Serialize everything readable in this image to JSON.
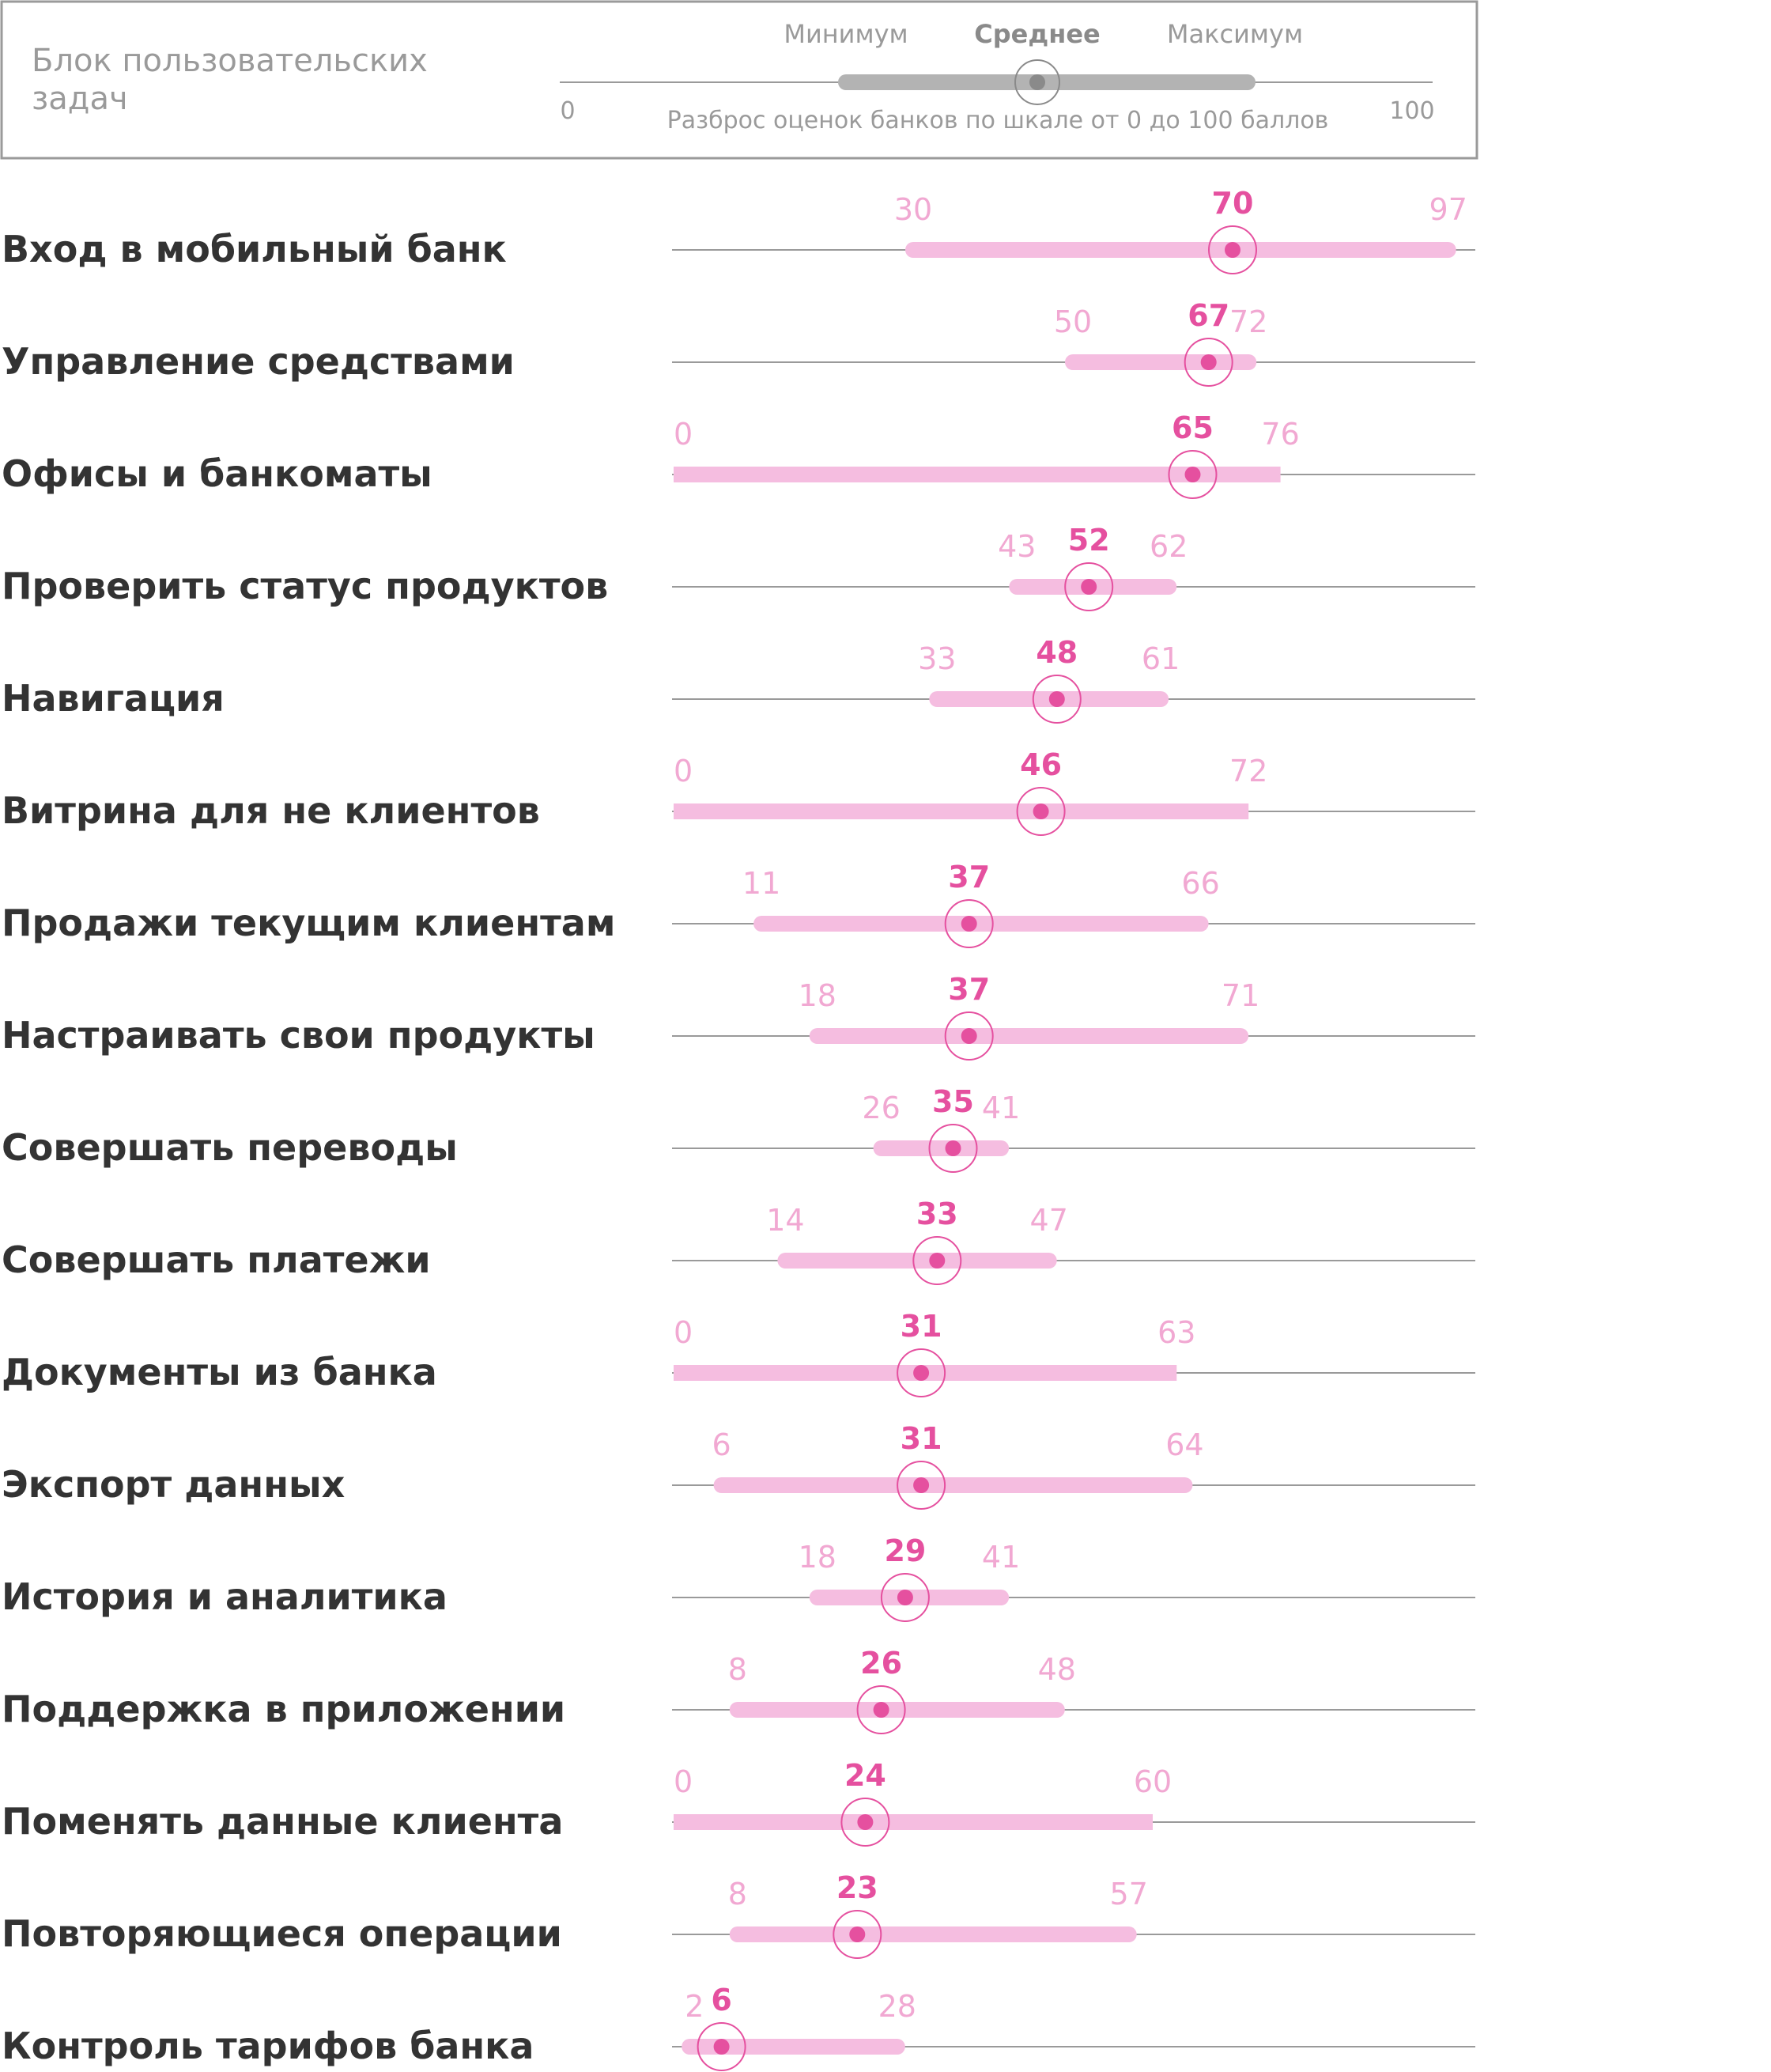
{
  "legend": {
    "title_line1": "Блок пользовательских",
    "title_line2": "задач",
    "min_label": "Минимум",
    "avg_label": "Среднее",
    "max_label": "Максимум",
    "scale_start": "0",
    "scale_end": "100",
    "caption": "Разброс оценок банков по шкале от 0 до 100 баллов"
  },
  "colors": {
    "range_bar": "#f5bde0",
    "avg_dot": "#e5509f",
    "avg_value": "#e5509f",
    "range_labels": "#f1a8d2",
    "axis_line": "#9a9a9a",
    "row_label": "#333333",
    "legend_bar": "#b3b3b3",
    "legend_text": "#9a9a9a"
  },
  "chart_data": {
    "type": "range-dot",
    "xlim": [
      0,
      100
    ],
    "rows": [
      {
        "label": "Вход в мобильный банк",
        "min": 30,
        "avg": 70,
        "max": 97
      },
      {
        "label": "Управление средствами",
        "min": 50,
        "avg": 67,
        "max": 72
      },
      {
        "label": "Офисы и банкоматы",
        "min": 0,
        "avg": 65,
        "max": 76
      },
      {
        "label": "Проверить статус продуктов",
        "min": 43,
        "avg": 52,
        "max": 62
      },
      {
        "label": "Навигация",
        "min": 33,
        "avg": 48,
        "max": 61
      },
      {
        "label": "Витрина для не клиентов",
        "min": 0,
        "avg": 46,
        "max": 72
      },
      {
        "label": "Продажи текущим клиентам",
        "min": 11,
        "avg": 37,
        "max": 66
      },
      {
        "label": "Настраивать свои продукты",
        "min": 18,
        "avg": 37,
        "max": 71
      },
      {
        "label": "Совершать переводы",
        "min": 26,
        "avg": 35,
        "max": 41
      },
      {
        "label": "Совершать платежи",
        "min": 14,
        "avg": 33,
        "max": 47
      },
      {
        "label": "Документы из банка",
        "min": 0,
        "avg": 31,
        "max": 63
      },
      {
        "label": "Экспорт данных",
        "min": 6,
        "avg": 31,
        "max": 64
      },
      {
        "label": "История и аналитика",
        "min": 18,
        "avg": 29,
        "max": 41
      },
      {
        "label": "Поддержка в приложении",
        "min": 8,
        "avg": 26,
        "max": 48
      },
      {
        "label": "Поменять данные клиента",
        "min": 0,
        "avg": 24,
        "max": 60
      },
      {
        "label": "Повторяющиеся операции",
        "min": 8,
        "avg": 23,
        "max": 57
      },
      {
        "label": "Контроль тарифов банка",
        "min": 2,
        "avg": 6,
        "max": 28
      }
    ]
  }
}
